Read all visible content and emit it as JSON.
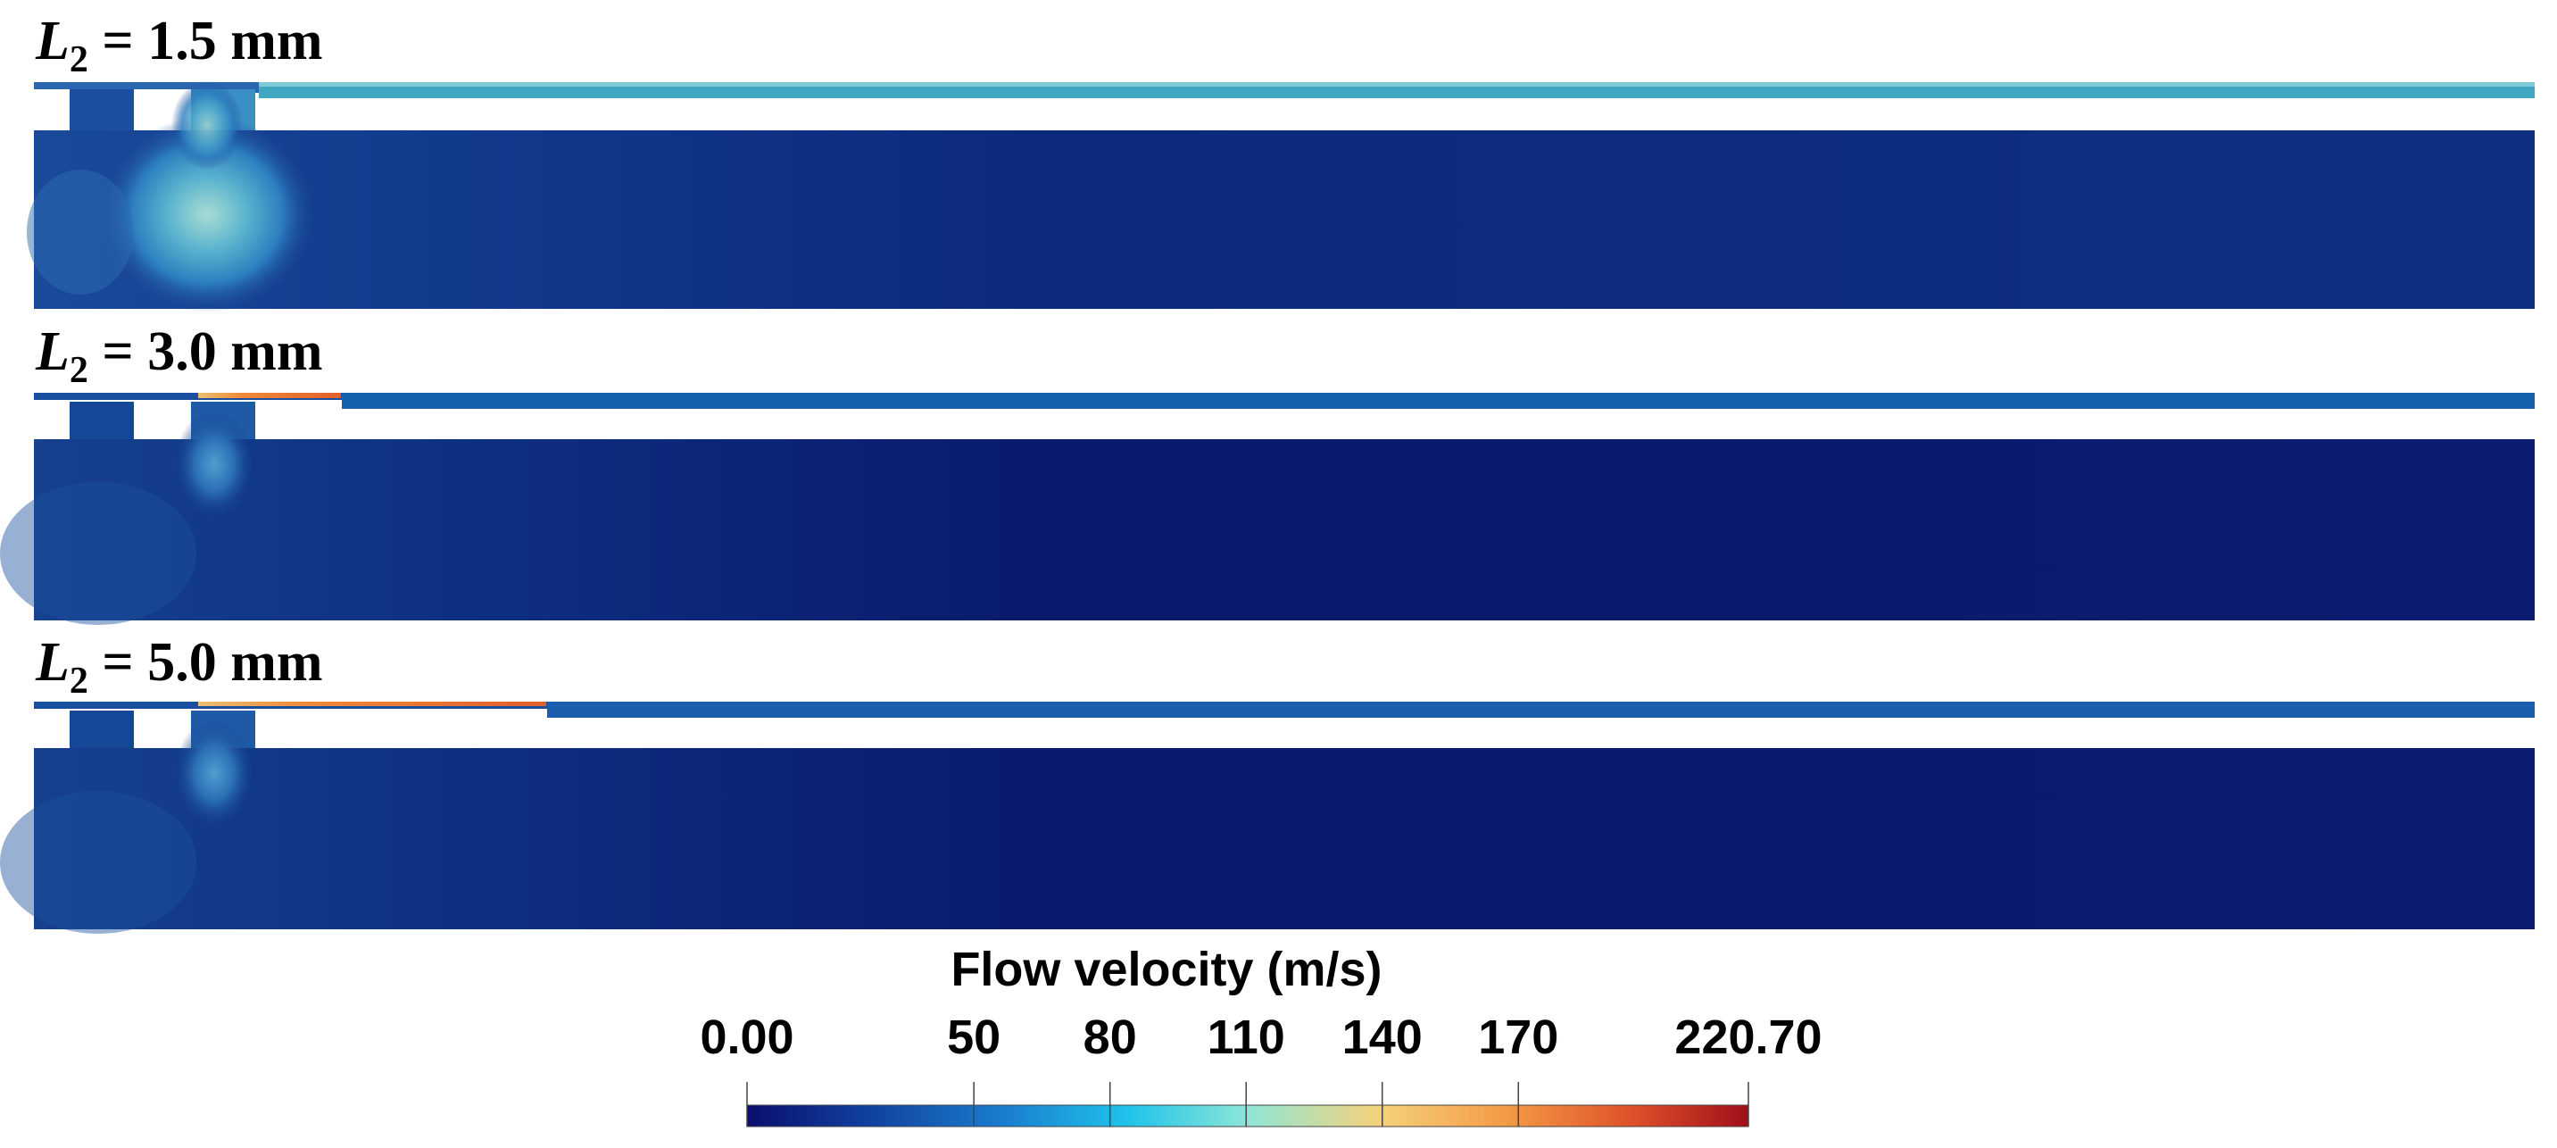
{
  "panels": [
    {
      "label": {
        "symbol": "L",
        "subscript": "2",
        "text": " = 1.5 mm"
      },
      "length_mm": 1.5,
      "channel_color": "#3fa7c2"
    },
    {
      "label": {
        "symbol": "L",
        "subscript": "2",
        "text": " = 3.0 mm"
      },
      "length_mm": 3.0,
      "channel_color": "#1660b0"
    },
    {
      "label": {
        "symbol": "L",
        "subscript": "2",
        "text": " = 5.0 mm"
      },
      "length_mm": 5.0,
      "channel_color": "#1a5fae"
    }
  ],
  "colorbar": {
    "title": "Flow velocity (m/s)",
    "min": 0.0,
    "max": 220.7,
    "ticks": [
      {
        "value": 0.0,
        "label": "0.00"
      },
      {
        "value": 50,
        "label": "50"
      },
      {
        "value": 80,
        "label": "80"
      },
      {
        "value": 110,
        "label": "110"
      },
      {
        "value": 140,
        "label": "140"
      },
      {
        "value": 170,
        "label": "170"
      },
      {
        "value": 220.7,
        "label": "220.70"
      }
    ],
    "colormap": [
      "#0a0f6e",
      "#10409f",
      "#1a7fd0",
      "#1ec3ea",
      "#8ee6d8",
      "#f5d27a",
      "#f39a45",
      "#e0532a",
      "#a10e1a"
    ]
  },
  "colors": {
    "deep_field": "#0b1a72",
    "mid_field": "#133c8c",
    "jet_light": "#9ed5d2",
    "hot_film": "#f08a3a"
  }
}
